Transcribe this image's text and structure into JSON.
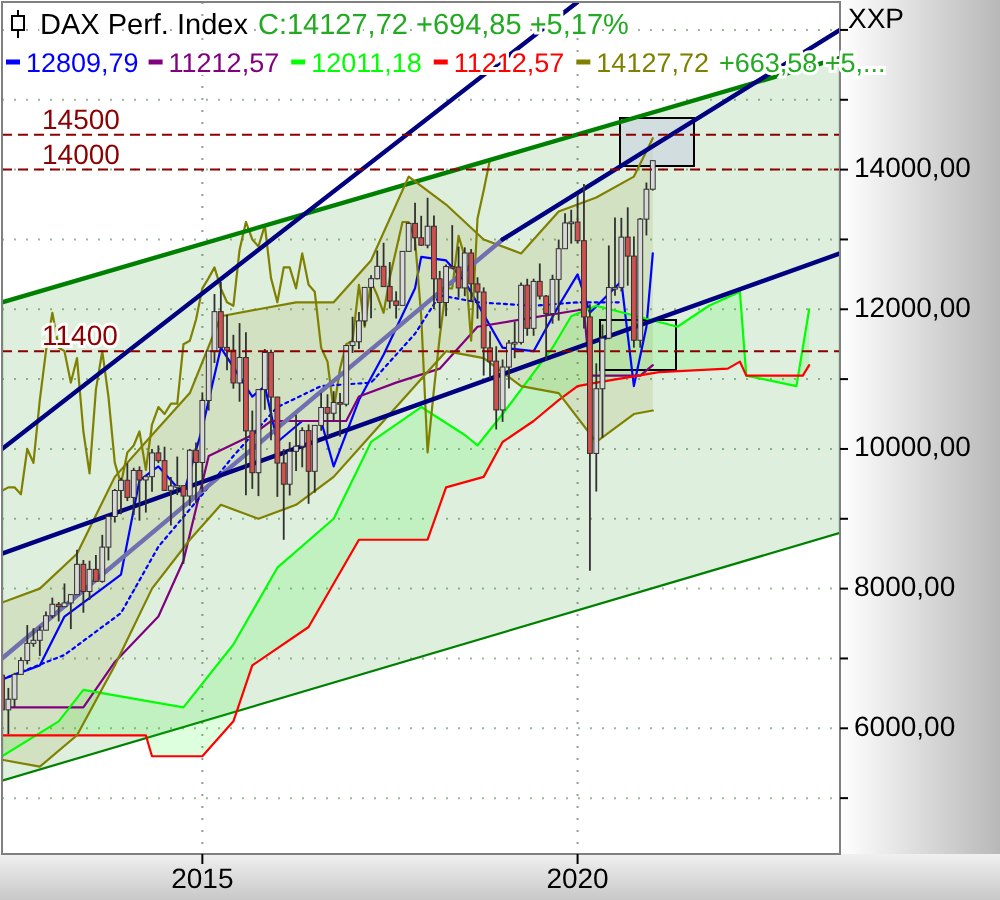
{
  "chart_data": {
    "type": "candlestick",
    "title": "DAX Perf. Index",
    "ylabel": "XXP",
    "annotations": [
      "C:14127,72 +694,85 +5,17%",
      "+663,58 +5,..."
    ],
    "x": [
      "2012-05",
      "2012-06",
      "2012-07",
      "2012-08",
      "2012-09",
      "2012-10",
      "2012-11",
      "2012-12",
      "2013-01",
      "2013-02",
      "2013-03",
      "2013-04",
      "2013-05",
      "2013-06",
      "2013-07",
      "2013-08",
      "2013-09",
      "2013-10",
      "2013-11",
      "2013-12",
      "2014-01",
      "2014-02",
      "2014-03",
      "2014-04",
      "2014-05",
      "2014-06",
      "2014-07",
      "2014-08",
      "2014-09",
      "2014-10",
      "2014-11",
      "2014-12",
      "2015-01",
      "2015-02",
      "2015-03",
      "2015-04",
      "2015-05",
      "2015-06",
      "2015-07",
      "2015-08",
      "2015-09",
      "2015-10",
      "2015-11",
      "2015-12",
      "2016-01",
      "2016-02",
      "2016-03",
      "2016-04",
      "2016-05",
      "2016-06",
      "2016-07",
      "2016-08",
      "2016-09",
      "2016-10",
      "2016-11",
      "2016-12",
      "2017-01",
      "2017-02",
      "2017-03",
      "2017-04",
      "2017-05",
      "2017-06",
      "2017-07",
      "2017-08",
      "2017-09",
      "2017-10",
      "2017-11",
      "2017-12",
      "2018-01",
      "2018-02",
      "2018-03",
      "2018-04",
      "2018-05",
      "2018-06",
      "2018-07",
      "2018-08",
      "2018-09",
      "2018-10",
      "2018-11",
      "2018-12",
      "2019-01",
      "2019-02",
      "2019-03",
      "2019-04",
      "2019-05",
      "2019-06",
      "2019-07",
      "2019-08",
      "2019-09",
      "2019-10",
      "2019-11",
      "2019-12",
      "2020-01",
      "2020-02",
      "2020-03",
      "2020-04",
      "2020-05",
      "2020-06",
      "2020-07",
      "2020-08",
      "2020-09",
      "2020-10",
      "2020-11",
      "2020-12",
      "2021-01"
    ],
    "ohlc": [
      [
        6761,
        6778,
        6259,
        6264
      ],
      [
        6264,
        6578,
        5915,
        6416
      ],
      [
        6416,
        6795,
        6303,
        6772
      ],
      [
        6772,
        7016,
        6765,
        6970
      ],
      [
        6970,
        7478,
        6916,
        7216
      ],
      [
        7216,
        7433,
        7168,
        7260
      ],
      [
        7260,
        7459,
        7036,
        7405
      ],
      [
        7405,
        7672,
        7405,
        7612
      ],
      [
        7612,
        7871,
        7575,
        7776
      ],
      [
        7776,
        7807,
        7530,
        7742
      ],
      [
        7742,
        8074,
        7742,
        7795
      ],
      [
        7795,
        7918,
        7420,
        7914
      ],
      [
        7914,
        8558,
        7914,
        8348
      ],
      [
        8348,
        8410,
        7655,
        7959
      ],
      [
        7959,
        8400,
        7838,
        8276
      ],
      [
        8276,
        8482,
        8102,
        8104
      ],
      [
        8104,
        8770,
        8085,
        8594
      ],
      [
        8594,
        9050,
        8404,
        9033
      ],
      [
        9033,
        9426,
        8946,
        9405
      ],
      [
        9405,
        9589,
        9066,
        9552
      ],
      [
        9552,
        9794,
        9254,
        9306
      ],
      [
        9306,
        9730,
        9053,
        9692
      ],
      [
        9692,
        9750,
        8973,
        9556
      ],
      [
        9556,
        9623,
        9089,
        9603
      ],
      [
        9603,
        10000,
        9388,
        9943
      ],
      [
        9943,
        10050,
        9798,
        9833
      ],
      [
        9833,
        10032,
        9400,
        9407
      ],
      [
        9407,
        9600,
        8903,
        9470
      ],
      [
        9470,
        9891,
        9340,
        9474
      ],
      [
        9474,
        9480,
        8355,
        9326
      ],
      [
        9326,
        10000,
        9183,
        9981
      ],
      [
        9981,
        10093,
        9219,
        9806
      ],
      [
        9806,
        10810,
        9383,
        10694
      ],
      [
        10694,
        11402,
        10550,
        11402
      ],
      [
        11402,
        12219,
        11231,
        11966
      ],
      [
        11966,
        12391,
        11440,
        11454
      ],
      [
        11454,
        11921,
        11128,
        11414
      ],
      [
        11414,
        11634,
        10863,
        10945
      ],
      [
        10945,
        11802,
        10676,
        11309
      ],
      [
        11309,
        11670,
        9338,
        10259
      ],
      [
        10259,
        10549,
        9428,
        9660
      ],
      [
        9660,
        10850,
        9325,
        10850
      ],
      [
        10850,
        11431,
        10561,
        11382
      ],
      [
        11382,
        11420,
        10124,
        10743
      ],
      [
        10743,
        10745,
        9314,
        9798
      ],
      [
        9798,
        9998,
        8699,
        9495
      ],
      [
        9495,
        10098,
        9333,
        9966
      ],
      [
        9966,
        10486,
        9684,
        10039
      ],
      [
        10039,
        10310,
        9737,
        10263
      ],
      [
        10263,
        10351,
        9214,
        9680
      ],
      [
        9680,
        10337,
        9374,
        10337
      ],
      [
        10337,
        10802,
        10260,
        10593
      ],
      [
        10593,
        10783,
        10174,
        10511
      ],
      [
        10511,
        10827,
        10403,
        10665
      ],
      [
        10665,
        10801,
        10175,
        10640
      ],
      [
        10640,
        11481,
        10609,
        11481
      ],
      [
        11481,
        11893,
        11375,
        11535
      ],
      [
        11535,
        11962,
        11431,
        11834
      ],
      [
        11834,
        12313,
        11758,
        12313
      ],
      [
        12313,
        12486,
        11870,
        12438
      ],
      [
        12438,
        12842,
        12427,
        12615
      ],
      [
        12615,
        12952,
        12325,
        12325
      ],
      [
        12325,
        12676,
        12011,
        12118
      ],
      [
        12118,
        12257,
        11868,
        12056
      ],
      [
        12056,
        12829,
        12056,
        12829
      ],
      [
        12829,
        13241,
        12825,
        13230
      ],
      [
        13230,
        13526,
        12843,
        13024
      ],
      [
        13024,
        13338,
        12907,
        12918
      ],
      [
        12918,
        13597,
        12873,
        13189
      ],
      [
        13189,
        13344,
        12003,
        12436
      ],
      [
        12436,
        12550,
        11727,
        12097
      ],
      [
        12097,
        12640,
        11901,
        12612
      ],
      [
        12612,
        13205,
        12575,
        12605
      ],
      [
        12605,
        12898,
        12166,
        12306
      ],
      [
        12306,
        12887,
        12188,
        12806
      ],
      [
        12806,
        12863,
        12106,
        12364
      ],
      [
        12364,
        12458,
        11865,
        12247
      ],
      [
        12247,
        12314,
        11051,
        11447
      ],
      [
        11447,
        11686,
        11009,
        11257
      ],
      [
        11257,
        11470,
        10279,
        10559
      ],
      [
        10559,
        11281,
        10387,
        11173
      ],
      [
        11173,
        11560,
        10864,
        11516
      ],
      [
        11516,
        11823,
        11299,
        11526
      ],
      [
        11526,
        12382,
        11494,
        12344
      ],
      [
        12344,
        12437,
        11620,
        11727
      ],
      [
        11727,
        12438,
        11620,
        12399
      ],
      [
        12399,
        12656,
        12141,
        12189
      ],
      [
        12189,
        12204,
        11266,
        11939
      ],
      [
        11939,
        12494,
        11794,
        12428
      ],
      [
        12428,
        12998,
        11838,
        12867
      ],
      [
        12867,
        13374,
        12867,
        13236
      ],
      [
        13236,
        13425,
        12940,
        13249
      ],
      [
        13249,
        13640,
        12948,
        12982
      ],
      [
        12982,
        13795,
        11725,
        11890
      ],
      [
        11890,
        12072,
        8256,
        9936
      ],
      [
        9936,
        11226,
        9390,
        10862
      ],
      [
        10862,
        11782,
        10161,
        11586
      ],
      [
        11586,
        12914,
        11572,
        12311
      ],
      [
        12311,
        13313,
        12194,
        12313
      ],
      [
        12313,
        13310,
        12255,
        13033
      ],
      [
        13033,
        13460,
        12339,
        12761
      ],
      [
        12761,
        13043,
        11450,
        11556
      ],
      [
        11556,
        13308,
        11450,
        13291
      ],
      [
        13291,
        13815,
        13057,
        13719
      ],
      [
        13719,
        14131,
        13700,
        14128
      ]
    ],
    "series": [
      {
        "type": "line",
        "name": "12809,79",
        "color": "#0000ff",
        "x": [
          "2012-05",
          "2012-11",
          "2013-03",
          "2013-09",
          "2013-12",
          "2014-03",
          "2014-06",
          "2014-10",
          "2015-01",
          "2015-04",
          "2015-09",
          "2015-11",
          "2016-01",
          "2016-05",
          "2016-08",
          "2016-10",
          "2017-02",
          "2017-06",
          "2017-11",
          "2017-12",
          "2018-04",
          "2018-07",
          "2019-01",
          "2019-06",
          "2019-10",
          "2020-01",
          "2020-03",
          "2020-08",
          "2020-10",
          "2020-12",
          "2021-01"
        ],
        "values": [
          6700,
          6900,
          7600,
          8000,
          8200,
          9550,
          9750,
          9350,
          10300,
          11450,
          10750,
          10900,
          10100,
          10400,
          10400,
          9750,
          10700,
          11350,
          12300,
          12750,
          12700,
          12400,
          11450,
          11400,
          12050,
          12500,
          11950,
          12400,
          10900,
          11750,
          12800
        ]
      },
      {
        "type": "line",
        "name": "11212,57",
        "color": "#800080",
        "x": [
          "2012-06",
          "2013-06",
          "2013-11",
          "2014-06",
          "2014-10",
          "2015-02",
          "2015-09",
          "2015-12",
          "2016-12",
          "2017-02",
          "2017-08",
          "2018-03",
          "2018-09",
          "2020-02",
          "2020-03",
          "2020-11",
          "2021-01"
        ],
        "values": [
          6300,
          6300,
          6950,
          7600,
          8400,
          9900,
          10200,
          10400,
          10400,
          10750,
          10950,
          11150,
          11750,
          12000,
          11050,
          11050,
          11200
        ]
      },
      {
        "type": "line",
        "name": "12011,18",
        "color": "#00ff00",
        "x": [
          "2012-05",
          "2013-02",
          "2013-06",
          "2014-10",
          "2015-06",
          "2016-01",
          "2016-10",
          "2017-04",
          "2017-12",
          "2018-07",
          "2018-09",
          "2019-01",
          "2019-09",
          "2019-12",
          "2020-04",
          "2021-05",
          "2021-10",
          "2022-03",
          "2022-04",
          "2022-12",
          "2023-02"
        ],
        "values": [
          5600,
          6100,
          6550,
          6300,
          7200,
          8300,
          9000,
          10100,
          10600,
          10200,
          10050,
          10500,
          11450,
          11900,
          12050,
          11750,
          12050,
          12250,
          11050,
          10900,
          12000
        ]
      },
      {
        "type": "line",
        "name": "11212,57",
        "color": "#ff0000",
        "x": [
          "2012-05",
          "2014-04",
          "2014-05",
          "2015-01",
          "2015-06",
          "2015-09",
          "2016-06",
          "2017-02",
          "2018-01",
          "2018-04",
          "2018-10",
          "2019-01",
          "2019-06",
          "2019-10",
          "2020-01",
          "2020-04",
          "2021-02",
          "2022-01",
          "2022-03",
          "2022-04",
          "2023-01",
          "2023-02"
        ],
        "values": [
          5900,
          5900,
          5600,
          5600,
          6100,
          6900,
          7450,
          8700,
          8700,
          9450,
          9600,
          10100,
          10400,
          10700,
          10900,
          10950,
          11100,
          11150,
          11250,
          11050,
          11050,
          11200
        ]
      },
      {
        "type": "line",
        "name": "14127,72",
        "color": "#808000",
        "x": [
          "2012-05",
          "2012-06",
          "2012-07",
          "2012-08",
          "2012-09",
          "2012-10",
          "2012-11",
          "2012-12",
          "2013-01",
          "2013-02",
          "2013-03",
          "2013-04",
          "2013-05",
          "2013-06",
          "2013-07",
          "2013-08",
          "2013-09",
          "2013-10",
          "2013-11",
          "2013-12",
          "2014-01",
          "2014-02",
          "2014-03",
          "2014-04",
          "2014-05",
          "2014-06",
          "2014-07",
          "2014-08",
          "2014-09",
          "2014-10",
          "2014-11",
          "2014-12",
          "2015-01",
          "2015-02",
          "2015-03",
          "2015-04",
          "2015-05",
          "2015-06",
          "2015-07",
          "2015-08",
          "2015-09",
          "2015-10",
          "2015-11",
          "2015-12",
          "2016-01",
          "2016-02",
          "2016-03",
          "2016-04",
          "2016-05",
          "2016-06",
          "2016-07",
          "2016-08",
          "2016-09",
          "2016-10",
          "2016-11",
          "2016-12",
          "2017-01",
          "2017-02",
          "2017-03",
          "2017-04",
          "2017-05",
          "2017-06",
          "2017-07",
          "2017-08",
          "2017-09",
          "2017-10",
          "2017-11",
          "2017-12",
          "2018-01",
          "2018-02",
          "2018-03",
          "2018-04",
          "2018-05",
          "2018-06",
          "2018-07",
          "2018-08",
          "2018-09",
          "2018-10",
          "2018-11"
        ],
        "values": [
          9400,
          9450,
          9450,
          9350,
          10000,
          9800,
          10700,
          11400,
          11950,
          11450,
          11400,
          10950,
          11300,
          10250,
          9650,
          10850,
          11400,
          10750,
          9800,
          9500,
          9950,
          10050,
          10250,
          9700,
          10350,
          10600,
          10500,
          10650,
          10650,
          11500,
          11550,
          11850,
          12300,
          12450,
          12600,
          12300,
          12100,
          12050,
          12850,
          13250,
          13000,
          12900,
          13200,
          12450,
          12100,
          12600,
          12600,
          12300,
          12800,
          12350,
          12250,
          11450,
          11250,
          10550,
          11150,
          11500,
          11550,
          12350,
          11750,
          12400,
          12200,
          11950,
          12450,
          12850,
          13250,
          13250,
          13000,
          11900,
          9950,
          10850,
          11600,
          12300,
          12300,
          13050,
          12750,
          11550,
          13300,
          13700,
          14150
        ]
      },
      {
        "type": "line",
        "color": "#0000ff",
        "line_style": "dotted",
        "x": [
          "2012-05",
          "2013-03",
          "2013-12",
          "2014-06",
          "2015-01",
          "2015-06",
          "2016-01",
          "2016-08",
          "2017-04",
          "2017-11",
          "2018-03",
          "2018-09",
          "2019-06",
          "2020-01",
          "2020-08"
        ],
        "values": [
          6700,
          7050,
          7650,
          8600,
          9350,
          9900,
          10600,
          10900,
          10950,
          11650,
          12200,
          12100,
          12050,
          12100,
          12100
        ]
      },
      {
        "type": "line",
        "color": "#008000",
        "x": [
          "2012-05",
          "2023-07"
        ],
        "values": [
          12100,
          15600
        ],
        "lower": [
          5250,
          8800
        ],
        "upper": [
          12100,
          15600
        ]
      },
      {
        "type": "line",
        "color": "#808000",
        "x": [
          "2012-05",
          "2012-11",
          "2013-05",
          "2013-11",
          "2014-05",
          "2014-11",
          "2015-04",
          "2015-10",
          "2016-04",
          "2016-10",
          "2017-04",
          "2017-10",
          "2018-04",
          "2018-10",
          "2019-04",
          "2019-10",
          "2020-04",
          "2020-10",
          "2021-01"
        ],
        "values": [
          7800,
          8000,
          8500,
          9600,
          10200,
          10800,
          11900,
          12000,
          12100,
          12100,
          12700,
          13900,
          13500,
          13000,
          12800,
          13400,
          13600,
          13900,
          14450
        ]
      },
      {
        "type": "line",
        "color": "#808000",
        "x": [
          "2012-05",
          "2012-11",
          "2013-05",
          "2013-11",
          "2014-05",
          "2014-11",
          "2015-04",
          "2015-10",
          "2016-04",
          "2016-10",
          "2017-04",
          "2017-10",
          "2018-04",
          "2018-10",
          "2019-04",
          "2019-10",
          "2020-04",
          "2020-10",
          "2021-01"
        ],
        "values": [
          5550,
          5450,
          5900,
          6900,
          8000,
          8700,
          9200,
          9000,
          9200,
          9600,
          10200,
          10800,
          11400,
          11300,
          10900,
          10800,
          10100,
          10500,
          10550
        ]
      },
      {
        "type": "line",
        "color": "#7070b0",
        "x": [
          "2012-05",
          "2019-01"
        ],
        "values": [
          7000,
          13000
        ]
      },
      {
        "type": "line",
        "color": "#000080",
        "x": [
          "2019-01",
          "2023-07"
        ],
        "values": [
          13000,
          16000
        ]
      },
      {
        "type": "line",
        "color": "#000080",
        "x": [
          "2012-05",
          "2020-01"
        ],
        "values": [
          10000,
          16400
        ]
      },
      {
        "type": "line",
        "color": "#000080",
        "x": [
          "2012-05",
          "2023-07"
        ],
        "values": [
          8500,
          12800
        ]
      }
    ],
    "ref_lines": [
      {
        "axis": "y",
        "value": 14500,
        "label": "14500",
        "color": "#8b0000",
        "line_style": "dashed"
      },
      {
        "axis": "y",
        "value": 14000,
        "label": "14000",
        "color": "#8b0000",
        "line_style": "dashed"
      },
      {
        "axis": "y",
        "value": 11400,
        "label": "11400",
        "color": "#8b0000",
        "line_style": "dashed"
      }
    ],
    "xlim": [
      "2012-05",
      "2023-07"
    ],
    "xticks": [
      "2015",
      "2020"
    ],
    "ylim": [
      4200,
      16400
    ],
    "yticks": [
      {
        "value": 5000,
        "label": null
      },
      {
        "value": 6000,
        "label": "6000,00"
      },
      {
        "value": 7000,
        "label": null
      },
      {
        "value": 8000,
        "label": "8000,00"
      },
      {
        "value": 9000,
        "label": null
      },
      {
        "value": 10000,
        "label": "10000,00"
      },
      {
        "value": 11000,
        "label": null
      },
      {
        "value": 12000,
        "label": "12000,00"
      },
      {
        "value": 13000,
        "label": null
      },
      {
        "value": 14000,
        "label": "14000,00"
      },
      {
        "value": 15000,
        "label": null
      },
      {
        "value": 16000,
        "label": null
      }
    ],
    "grid": true,
    "legend": "top left"
  }
}
